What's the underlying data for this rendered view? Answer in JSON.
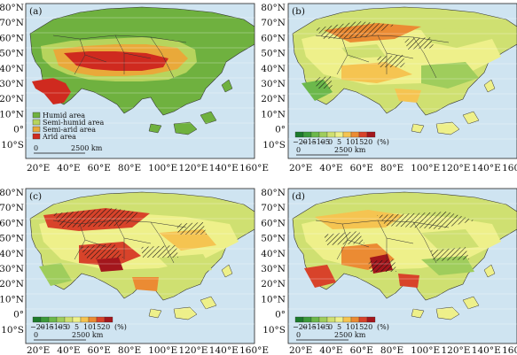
{
  "figure": {
    "lat_labels": [
      "80°N",
      "70°N",
      "60°N",
      "50°N",
      "40°N",
      "30°N",
      "20°N",
      "10°N",
      "0°",
      "10°S"
    ],
    "lon_labels": [
      "20°E",
      "40°E",
      "60°E",
      "80°E",
      "100°E",
      "120°E",
      "140°E",
      "160°E"
    ],
    "panels": [
      {
        "id": "a",
        "label": "(a)"
      },
      {
        "id": "b",
        "label": "(b)"
      },
      {
        "id": "c",
        "label": "(c)"
      },
      {
        "id": "d",
        "label": "(d)"
      }
    ],
    "legend_a": {
      "items": [
        {
          "label": "Humid area",
          "color": "#6fb13f"
        },
        {
          "label": "Semi-humid area",
          "color": "#b7d45d"
        },
        {
          "label": "Semi-arid area",
          "color": "#e9a93a"
        },
        {
          "label": "Arid area",
          "color": "#cf2a1f"
        }
      ]
    },
    "colorbar": {
      "labels": [
        "−20",
        "−15",
        "−10",
        "−5",
        "0",
        "5",
        "10",
        "15",
        "20"
      ],
      "unit": "(%)",
      "colors": [
        "#1c7a2b",
        "#3c9a3a",
        "#6cb84b",
        "#9fcd5c",
        "#cfe071",
        "#eef08a",
        "#f5c451",
        "#eb8b33",
        "#d8432a",
        "#a3161c"
      ]
    },
    "scalebar": {
      "zero": "0",
      "dist": "2500 km"
    },
    "colors": {
      "ocean": "#cfe4f1",
      "ocean_grid": "#e9f3f9",
      "border": "#222222"
    }
  }
}
